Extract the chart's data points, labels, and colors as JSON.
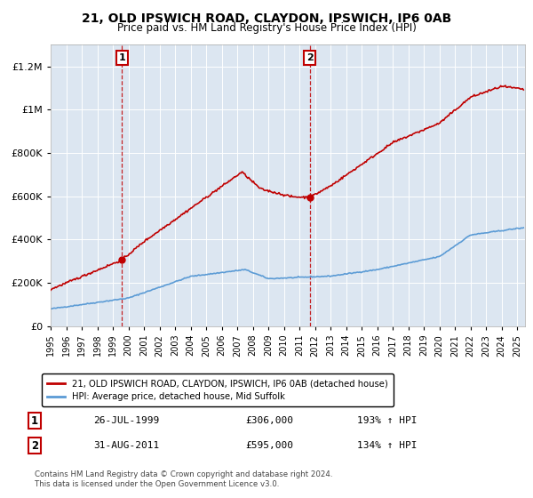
{
  "title": "21, OLD IPSWICH ROAD, CLAYDON, IPSWICH, IP6 0AB",
  "subtitle": "Price paid vs. HM Land Registry's House Price Index (HPI)",
  "legend_line1": "21, OLD IPSWICH ROAD, CLAYDON, IPSWICH, IP6 0AB (detached house)",
  "legend_line2": "HPI: Average price, detached house, Mid Suffolk",
  "annotation1_date": "26-JUL-1999",
  "annotation1_price": "£306,000",
  "annotation1_hpi": "193% ↑ HPI",
  "annotation2_date": "31-AUG-2011",
  "annotation2_price": "£595,000",
  "annotation2_hpi": "134% ↑ HPI",
  "footer": "Contains HM Land Registry data © Crown copyright and database right 2024.\nThis data is licensed under the Open Government Licence v3.0.",
  "hpi_color": "#5b9bd5",
  "price_color": "#c00000",
  "background_color": "#ffffff",
  "plot_bg_color": "#dce6f1",
  "ylim": [
    0,
    1300000
  ],
  "xlim_start": 1995.0,
  "xlim_end": 2025.5,
  "sale1_x": 1999.583,
  "sale1_y": 306000,
  "sale2_x": 2011.667,
  "sale2_y": 595000
}
